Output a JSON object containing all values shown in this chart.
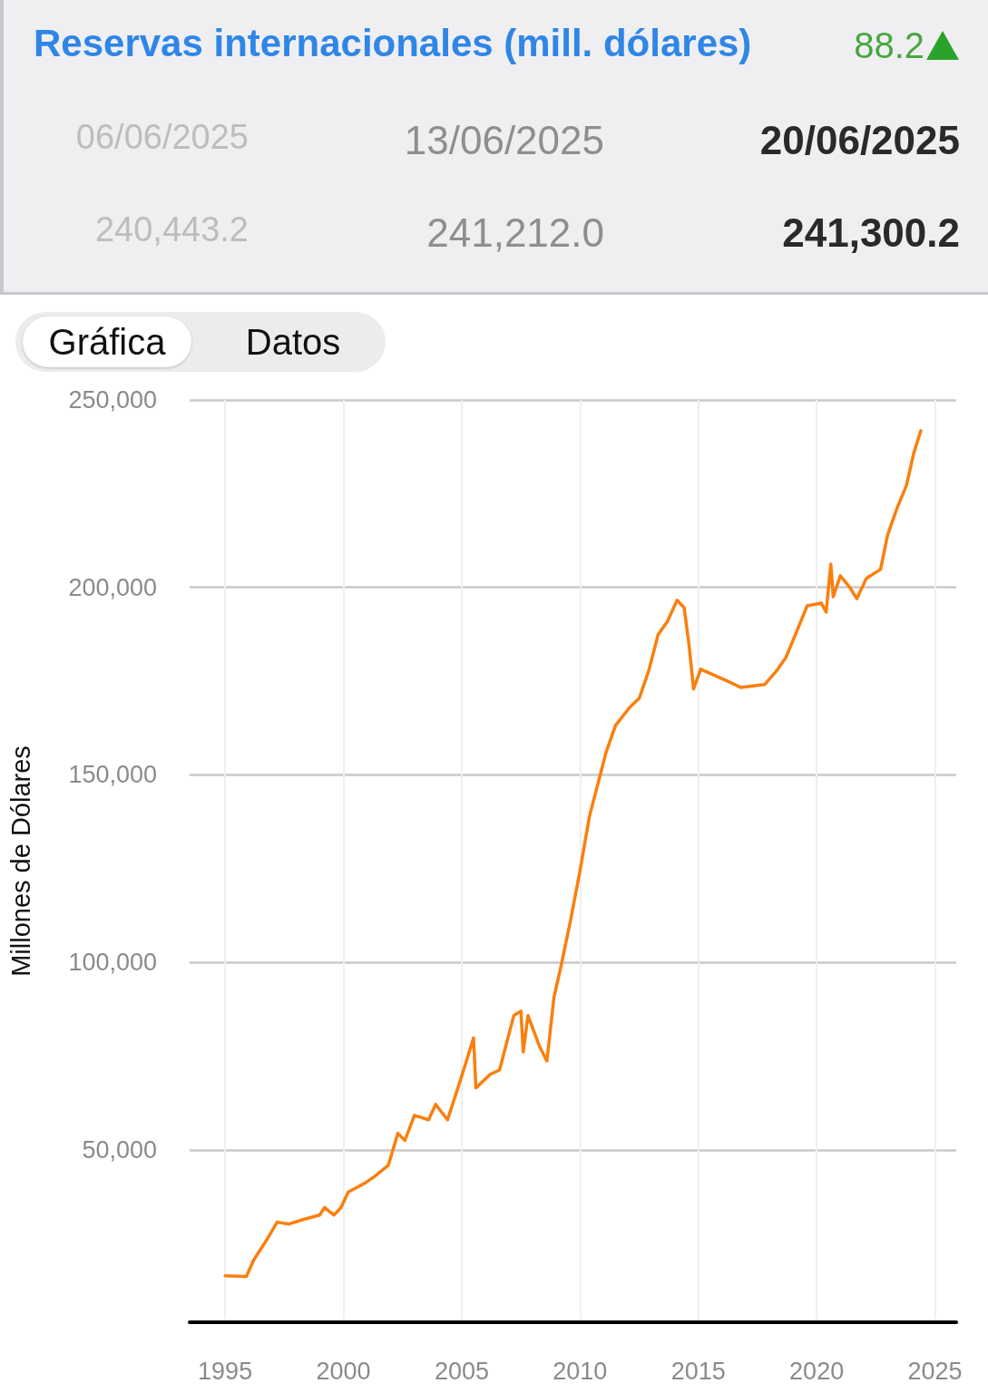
{
  "chart_data": {
    "type": "line",
    "title": "Reservas internacionales (mill. dólares)",
    "ylabel": "Millones de Dólares",
    "annotations": [
      "88.2",
      "06/06/2025",
      "13/06/2025",
      "20/06/2025",
      "240,443.2",
      "241,212.0",
      "241,300.2",
      "Gráfica",
      "Datos"
    ],
    "series": [
      {
        "color": "#fa7f0e",
        "x": [
          1995.0,
          1995.9,
          1996.2,
          1996.7,
          1997.2,
          1997.7,
          1998.3,
          1999.0,
          1999.2,
          1999.6,
          1999.9,
          2000.2,
          2000.9,
          2001.3,
          2001.9,
          2002.3,
          2002.6,
          2003.0,
          2003.6,
          2003.9,
          2004.4,
          2004.9,
          2005.5,
          2005.6,
          2006.2,
          2006.6,
          2007.2,
          2007.5,
          2007.6,
          2007.8,
          2008.3,
          2008.6,
          2008.9,
          2009.2,
          2009.6,
          2010.0,
          2010.4,
          2010.8,
          2011.1,
          2011.5,
          2012.1,
          2012.5,
          2012.9,
          2013.3,
          2013.7,
          2014.1,
          2014.4,
          2014.6,
          2014.8,
          2015.1,
          2015.7,
          2016.3,
          2016.8,
          2017.8,
          2018.3,
          2018.7,
          2019.1,
          2019.6,
          2020.2,
          2020.4,
          2020.6,
          2020.7,
          2021.0,
          2021.4,
          2021.7,
          2022.1,
          2022.7,
          2023.0,
          2023.4,
          2023.8,
          2024.1,
          2024.4
        ],
        "values": [
          16400,
          16200,
          20500,
          25400,
          30700,
          30200,
          31400,
          32600,
          34600,
          32600,
          34600,
          38700,
          41100,
          42800,
          45900,
          54400,
          52500,
          59200,
          58000,
          62100,
          58000,
          67700,
          79800,
          66500,
          70100,
          71300,
          85800,
          87000,
          76100,
          85800,
          77400,
          73700,
          90700,
          99100,
          111200,
          124500,
          139000,
          148700,
          156000,
          163200,
          168000,
          170400,
          177700,
          187400,
          191000,
          196600,
          194600,
          185000,
          172900,
          178200,
          176500,
          174800,
          173300,
          174100,
          177700,
          181300,
          187400,
          195100,
          195800,
          193400,
          206200,
          197500,
          203100,
          200000,
          197000,
          202400,
          204800,
          214000,
          221200,
          227300,
          235700,
          241800
        ]
      }
    ],
    "xlim": [
      1993.5,
      2025.9
    ],
    "xticks": [
      1995,
      2000,
      2005,
      2010,
      2015,
      2020,
      2025
    ],
    "ylim": [
      4000,
      250000
    ],
    "yticks": [
      {
        "value": 50000,
        "label": "50,000"
      },
      {
        "value": 100000,
        "label": "100,000"
      },
      {
        "value": 150000,
        "label": "150,000"
      },
      {
        "value": 200000,
        "label": "200,000"
      },
      {
        "value": 250000,
        "label": "250,000"
      }
    ],
    "grid": true,
    "marker": "none",
    "line_style": "solid"
  }
}
